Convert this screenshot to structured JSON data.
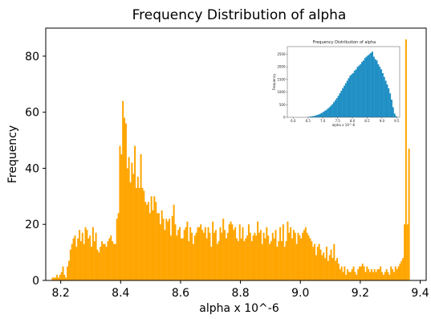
{
  "chart_data": [
    {
      "type": "bar",
      "title": "Frequency Distribution of alpha",
      "xlabel": "alpha x 10^-6",
      "ylabel": "Frequency",
      "xlim": [
        8.15,
        9.42
      ],
      "ylim": [
        0,
        90
      ],
      "xticks": [
        "8.2",
        "8.4",
        "8.6",
        "8.8",
        "9.0",
        "9.2",
        "9.4"
      ],
      "yticks": [
        "0",
        "20",
        "40",
        "60",
        "80"
      ],
      "color": "#FFA500",
      "grid": false,
      "bin_start": 8.17,
      "bin_width": 0.005,
      "values": [
        1,
        1,
        1,
        2,
        1,
        2,
        3,
        5,
        2,
        1,
        5,
        7,
        11,
        13,
        15,
        16,
        12,
        15,
        18,
        14,
        17,
        13,
        19,
        18,
        15,
        16,
        12,
        19,
        14,
        17,
        11,
        10,
        12,
        14,
        13,
        13,
        12,
        14,
        15,
        16,
        14,
        13,
        13,
        22,
        24,
        48,
        45,
        64,
        58,
        56,
        40,
        44,
        35,
        42,
        38,
        48,
        33,
        37,
        33,
        45,
        33,
        32,
        28,
        27,
        28,
        24,
        30,
        25,
        30,
        28,
        24,
        24,
        20,
        25,
        22,
        18,
        22,
        21,
        22,
        16,
        23,
        27,
        20,
        16,
        18,
        19,
        15,
        15,
        18,
        19,
        21,
        14,
        19,
        17,
        13,
        16,
        17,
        19,
        19,
        20,
        18,
        17,
        19,
        15,
        19,
        17,
        12,
        21,
        17,
        18,
        13,
        14,
        19,
        17,
        22,
        18,
        15,
        17,
        20,
        21,
        20,
        18,
        19,
        15,
        14,
        20,
        15,
        19,
        14,
        15,
        16,
        20,
        17,
        14,
        16,
        17,
        16,
        21,
        17,
        18,
        13,
        17,
        15,
        19,
        16,
        13,
        14,
        17,
        15,
        18,
        12,
        14,
        19,
        14,
        20,
        12,
        14,
        21,
        17,
        19,
        15,
        18,
        17,
        13,
        17,
        16,
        15,
        17,
        18,
        19,
        17,
        16,
        15,
        14,
        12,
        13,
        9,
        12,
        13,
        11,
        9,
        10,
        8,
        12,
        7,
        9,
        11,
        8,
        13,
        7,
        8,
        6,
        4,
        5,
        3,
        5,
        2,
        4,
        3,
        3,
        4,
        5,
        3,
        2,
        4,
        5,
        5,
        6,
        5,
        3,
        5,
        4,
        3,
        4,
        3,
        4,
        3,
        4,
        4,
        5,
        3,
        2,
        3,
        4,
        3,
        2,
        5,
        4,
        3,
        5,
        4,
        5,
        6,
        7,
        8,
        20,
        86,
        20,
        47
      ]
    },
    {
      "type": "bar",
      "title": "Frequency Distribution of alpha",
      "xlabel": "alpha x 10^-6",
      "ylabel": "Frequency",
      "xlim": [
        5.8,
        9.6
      ],
      "ylim": [
        0,
        2800
      ],
      "xticks": [
        "6.0",
        "6.5",
        "7.0",
        "7.5",
        "8.0",
        "8.5",
        "9.0",
        "9.5"
      ],
      "yticks": [
        "0",
        "500",
        "1000",
        "1500",
        "2000",
        "2500"
      ],
      "color": "#1F8FC4",
      "bin_start": 6.5,
      "bin_width": 0.05,
      "values": [
        20,
        30,
        40,
        50,
        60,
        80,
        100,
        120,
        150,
        180,
        220,
        260,
        300,
        350,
        400,
        460,
        520,
        600,
        680,
        760,
        850,
        950,
        1050,
        1150,
        1250,
        1350,
        1450,
        1550,
        1650,
        1700,
        1750,
        1850,
        1900,
        2000,
        2050,
        2100,
        2200,
        2250,
        2350,
        2400,
        2450,
        2500,
        2550,
        2600,
        2400,
        2300,
        2250,
        2100,
        2000,
        1900,
        1750,
        1600,
        1450,
        1300,
        1150,
        950,
        700,
        400,
        150,
        50
      ]
    }
  ]
}
